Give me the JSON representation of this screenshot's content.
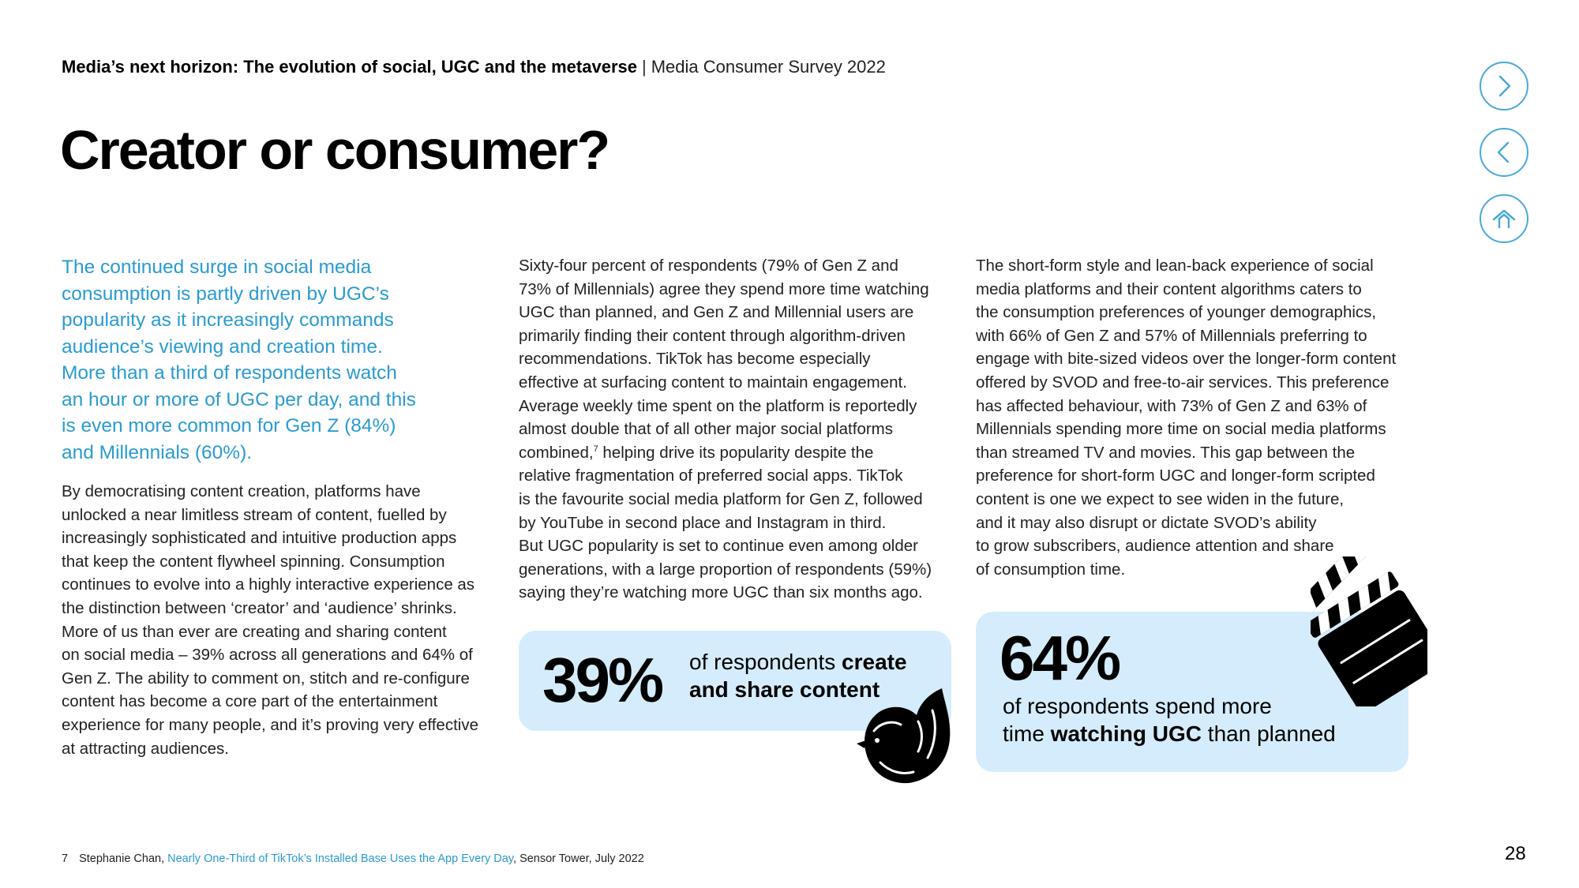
{
  "header": {
    "report_title": "Media’s next horizon: The evolution of social, UGC and the metaverse",
    "separator": "|",
    "survey_name": "Media Consumer Survey 2022"
  },
  "page_title": "Creator or consumer?",
  "nav": {
    "next_icon": "chevron-right-icon",
    "prev_icon": "chevron-left-icon",
    "home_icon": "home-icon",
    "accent_color": "#4aa9d6"
  },
  "col1": {
    "lead_lines": [
      "The continued surge in social media",
      "consumption is partly driven by UGC’s",
      "popularity as it increasingly commands",
      "audience’s viewing and creation time.",
      "More than a third of respondents watch",
      "an hour or more of UGC per day, and this",
      "is even more common for Gen Z (84%)",
      "and Millennials (60%)."
    ],
    "body_lines": [
      "By democratising content creation, platforms have",
      "unlocked a near limitless stream of content, fuelled by",
      "increasingly sophisticated and intuitive production apps",
      "that keep the content flywheel spinning. Consumption",
      "continues to evolve into a highly interactive experience as",
      "the distinction between ‘creator’ and ‘audience’ shrinks.",
      "More of us than ever are creating and sharing content",
      "on social media – 39% across all generations and 64% of",
      "Gen Z. The ability to comment on, stitch and re-configure",
      "content has become a core part of the entertainment",
      "experience for many people, and it’s proving very effective",
      "at attracting audiences."
    ]
  },
  "col2": {
    "lines_before_ref": [
      "Sixty-four percent of respondents (79% of Gen Z and",
      "73% of Millennials) agree they spend more time watching",
      "UGC than planned, and Gen Z and Millennial users are",
      "primarily finding their content through algorithm-driven",
      "recommendations. TikTok has become especially",
      "effective at surfacing content to maintain engagement.",
      "Average weekly time spent on the platform is reportedly",
      "almost double that of all other major social platforms"
    ],
    "ref_line_start": "combined,",
    "ref_mark": "7",
    "ref_line_end": " helping drive its popularity despite the",
    "lines_after_ref": [
      "relative fragmentation of preferred social apps. TikTok",
      "is the favourite social media platform for Gen Z, followed",
      "by YouTube in second place and Instagram in third.",
      "But UGC popularity is set to continue even among older",
      "generations, with a large proportion of respondents (59%)",
      "saying they’re watching more UGC than six months ago."
    ]
  },
  "col3": {
    "lines": [
      "The short-form style and lean-back experience of social",
      "media platforms and their content algorithms caters to",
      "the consumption preferences of younger demographics,",
      "with 66% of Gen Z and 57% of Millennials preferring to",
      "engage with bite-sized videos over the longer-form content",
      "offered by SVOD and free-to-air services. This preference",
      "has affected behaviour, with 73% of Gen Z and 63% of",
      "Millennials spending more time on social media platforms",
      "than streamed TV and movies. This gap between the",
      "preference for short-form UGC and longer-form scripted",
      "content is one we expect to see widen in the future,",
      "and it may also disrupt or dictate SVOD’s ability",
      "to grow subscribers, audience attention and share",
      "of consumption time."
    ]
  },
  "stat1": {
    "value": "39%",
    "line1_plain": "of respondents ",
    "line1_bold": "create",
    "line2_bold": "and share content",
    "icon": "bird-icon"
  },
  "stat2": {
    "value": "64%",
    "line1_plain": "of respondents spend more",
    "line2_plain_start": "time ",
    "line2_bold": "watching UGC",
    "line2_plain_end": " than planned",
    "icon": "clapperboard-icon"
  },
  "colors": {
    "lead_text": "#2a9bd0",
    "stat_box_bg": "#d4ecfb",
    "link": "#2a9bd0"
  },
  "footnote": {
    "number": "7",
    "author": "Stephanie Chan, ",
    "link_text": "Nearly One-Third of TikTok’s Installed Base Uses the App Every Day",
    "source": ", Sensor Tower, July 2022"
  },
  "page_number": "28"
}
